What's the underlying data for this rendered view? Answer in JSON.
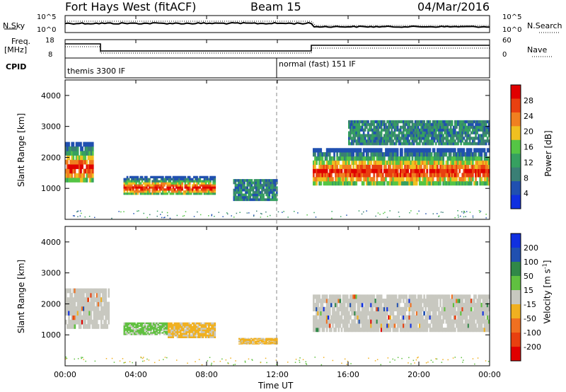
{
  "header": {
    "radar": "Fort Hays West (fitACF)",
    "beam": "Beam 15",
    "date": "04/Mar/2016"
  },
  "panels": {
    "noise": {
      "left_label": "N.Sky",
      "right_label": "N.Search",
      "left_ticks": [
        "10^5",
        "10^0"
      ],
      "right_ticks": [
        "10^5",
        "10^0"
      ]
    },
    "freq": {
      "left_label_1": "Freq.",
      "left_label_2": "[MHz]",
      "right_label": "Nave",
      "left_ticks": [
        "18",
        "8"
      ],
      "right_ticks": [
        "60",
        "0"
      ]
    },
    "cpid": {
      "label": "CPID",
      "segments": [
        "themis 3300 IF",
        "normal (fast) 151 IF"
      ]
    }
  },
  "colors": {
    "power_scale": [
      "#1030e0",
      "#2050b0",
      "#3a7f75",
      "#36a060",
      "#55c545",
      "#f0c020",
      "#f08020",
      "#e84010",
      "#e00000"
    ],
    "velocity_scale": [
      "#1030e0",
      "#2050b0",
      "#308848",
      "#60c040",
      "#c8c8c0",
      "#f0b020",
      "#f07020",
      "#e84010",
      "#e00000"
    ]
  },
  "chart_data": [
    {
      "type": "heatmap",
      "name": "power",
      "ylabel": "Slant Range [km]",
      "yticks": [
        1000,
        2000,
        3000,
        4000
      ],
      "xticks": [
        "00:00",
        "04:00",
        "08:00",
        "12:00",
        "16:00",
        "20:00",
        "00:00"
      ],
      "xlabel": "Time UT",
      "ylim": [
        0,
        4500
      ],
      "xlim_hours": [
        0,
        24
      ],
      "colorbar": {
        "label": "Power [dB]",
        "ticks": [
          4,
          8,
          12,
          16,
          20,
          24,
          28
        ]
      },
      "regions": [
        {
          "t": [
            0.0,
            1.6
          ],
          "r": [
            1200,
            2500
          ],
          "val": "high"
        },
        {
          "t": [
            3.3,
            8.5
          ],
          "r": [
            800,
            1400
          ],
          "val": "high"
        },
        {
          "t": [
            9.5,
            12.0
          ],
          "r": [
            600,
            1300
          ],
          "val": "low"
        },
        {
          "t": [
            14.0,
            24.0
          ],
          "r": [
            1100,
            2300
          ],
          "val": "high"
        },
        {
          "t": [
            16.0,
            24.0
          ],
          "r": [
            2400,
            3200
          ],
          "val": "low"
        }
      ]
    },
    {
      "type": "heatmap",
      "name": "velocity",
      "ylabel": "Slant Range [km]",
      "yticks": [
        1000,
        2000,
        3000,
        4000
      ],
      "xticks": [
        "00:00",
        "04:00",
        "08:00",
        "12:00",
        "16:00",
        "20:00",
        "00:00"
      ],
      "xlabel": "Time UT",
      "ylim": [
        0,
        4500
      ],
      "xlim_hours": [
        0,
        24
      ],
      "colorbar": {
        "label": "Velocity [m s",
        "label_sup": "-1",
        "label_end": "]",
        "ticks": [
          200,
          100,
          50,
          15,
          -15,
          -50,
          -100,
          -200
        ]
      },
      "regions": [
        {
          "t": [
            0.0,
            2.5
          ],
          "r": [
            1200,
            2500
          ],
          "val": "near-zero"
        },
        {
          "t": [
            3.3,
            5.8
          ],
          "r": [
            1000,
            1400
          ],
          "val": "+15..+50"
        },
        {
          "t": [
            5.8,
            8.5
          ],
          "r": [
            900,
            1400
          ],
          "val": "-15..-50"
        },
        {
          "t": [
            9.8,
            12.0
          ],
          "r": [
            700,
            900
          ],
          "val": "-15..-50"
        },
        {
          "t": [
            14.0,
            24.0
          ],
          "r": [
            1100,
            2300
          ],
          "val": "near-zero"
        }
      ]
    }
  ]
}
